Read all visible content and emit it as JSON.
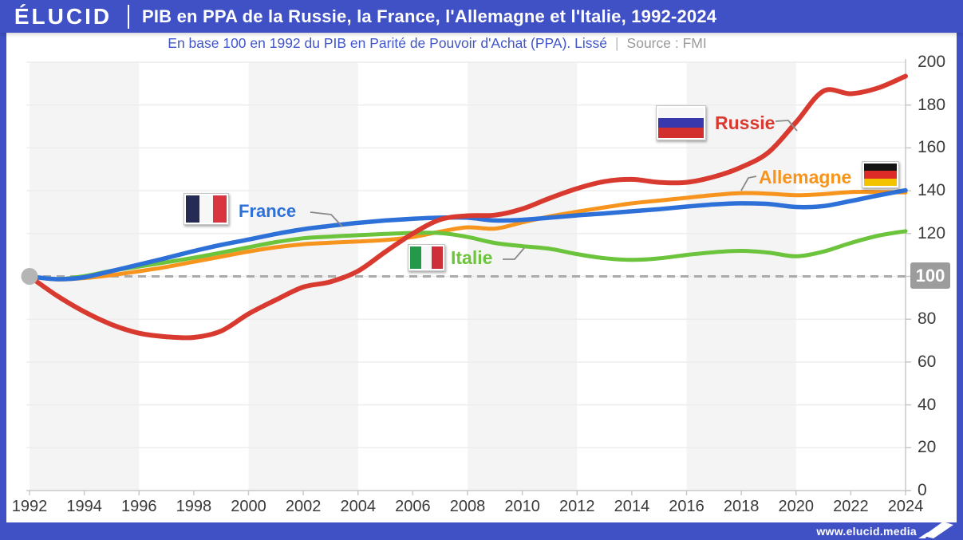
{
  "header": {
    "logo": "ÉLUCID",
    "title": "PIB en PPA de la Russie, la France, l'Allemagne et l'Italie, 1992-2024"
  },
  "subtitle": {
    "text": "En base 100 en 1992 du PIB en Parité de Pouvoir d'Achat (PPA). Lissé",
    "separator": "|",
    "source": "Source : FMI"
  },
  "footer": {
    "url": "www.elucid.media"
  },
  "colors": {
    "accent": "#4051c5",
    "band": "#f4f4f5",
    "grid": "#ececec",
    "axis": "#c8c8c8",
    "baseline_gray": "#ababab",
    "start_dot": "#b5b5b5",
    "badge_bg": "#9c9c9c",
    "tick_text": "#3a3a3a",
    "connector": "#8a8a8a"
  },
  "chart_data": {
    "type": "line",
    "title": "PIB en PPA de la Russie, la France, l'Allemagne et l'Italie, 1992-2024",
    "subtitle": "En base 100 en 1992 du PIB en Parité de Pouvoir d'Achat (PPA). Lissé",
    "source": "FMI",
    "x": [
      1992,
      1993,
      1994,
      1995,
      1996,
      1997,
      1998,
      1999,
      2000,
      2001,
      2002,
      2003,
      2004,
      2005,
      2006,
      2007,
      2008,
      2009,
      2010,
      2011,
      2012,
      2013,
      2014,
      2015,
      2016,
      2017,
      2018,
      2019,
      2020,
      2021,
      2022,
      2023,
      2024
    ],
    "xticks": [
      1992,
      1994,
      1996,
      1998,
      2000,
      2002,
      2004,
      2006,
      2008,
      2010,
      2012,
      2014,
      2016,
      2018,
      2020,
      2022,
      2024
    ],
    "ylim": [
      0,
      200
    ],
    "ytick_step": 20,
    "grid": true,
    "legend_position": "on-chart",
    "baseline": {
      "value": 100,
      "label": "100"
    },
    "bands": [
      [
        1992,
        1996
      ],
      [
        2000,
        2004
      ],
      [
        2008,
        2012
      ],
      [
        2016,
        2020
      ]
    ],
    "series": [
      {
        "name": "Allemagne",
        "color": "#f7941e",
        "flag": {
          "orientation": "horizontal",
          "colors": [
            "#141414",
            "#dd2b28",
            "#f3c300"
          ]
        },
        "values": [
          100,
          98.6,
          99.2,
          100.6,
          102.4,
          104.4,
          106.8,
          109.2,
          111.6,
          113.6,
          115,
          115.7,
          116.3,
          117,
          118.4,
          120.9,
          122.9,
          122.3,
          125.2,
          128,
          130.2,
          132.2,
          134.1,
          135.4,
          136.7,
          138,
          138.9,
          138.6,
          137.9,
          138.4,
          139.4,
          139.4,
          139.2
        ]
      },
      {
        "name": "Italie",
        "color": "#6cc33c",
        "flag": {
          "orientation": "vertical",
          "colors": [
            "#229a49",
            "#f7f7f7",
            "#ce2f39"
          ]
        },
        "values": [
          100,
          98.7,
          100.1,
          102.6,
          104.6,
          106.6,
          108.7,
          111.1,
          113.6,
          116,
          117.8,
          118.6,
          119.2,
          119.8,
          120.3,
          120.2,
          118.4,
          115.6,
          114.1,
          112.9,
          110.4,
          108.5,
          107.7,
          108.4,
          110,
          111.3,
          111.9,
          111.1,
          109.4,
          111.6,
          115.6,
          119,
          121.1
        ]
      },
      {
        "name": "France",
        "color": "#2d70d8",
        "flag": {
          "orientation": "vertical",
          "colors": [
            "#262b55",
            "#f7f7f7",
            "#d8353f"
          ]
        },
        "values": [
          100,
          98.7,
          99.6,
          102.5,
          105.5,
          108.6,
          111.8,
          114.7,
          117.2,
          119.8,
          122,
          123.6,
          125,
          126.1,
          126.9,
          127.4,
          127.4,
          126.1,
          126.4,
          127.4,
          128.5,
          129.4,
          130.4,
          131.4,
          132.6,
          133.6,
          134.1,
          133.8,
          132.4,
          132.8,
          135.2,
          137.8,
          140.2
        ]
      },
      {
        "name": "Russie",
        "color": "#d93a30",
        "flag": {
          "orientation": "horizontal",
          "colors": [
            "#f7f7f7",
            "#3939ad",
            "#d42f2f"
          ]
        },
        "values": [
          100,
          91,
          83.5,
          77.5,
          73.5,
          71.8,
          71.5,
          74.5,
          82.5,
          89,
          95,
          97.5,
          102.5,
          111.5,
          120,
          126.5,
          128.3,
          128.6,
          131.5,
          136.5,
          141,
          144.3,
          145.3,
          143.9,
          143.9,
          146.5,
          151,
          158,
          172,
          186.5,
          185.3,
          188,
          193.5
        ]
      }
    ]
  }
}
